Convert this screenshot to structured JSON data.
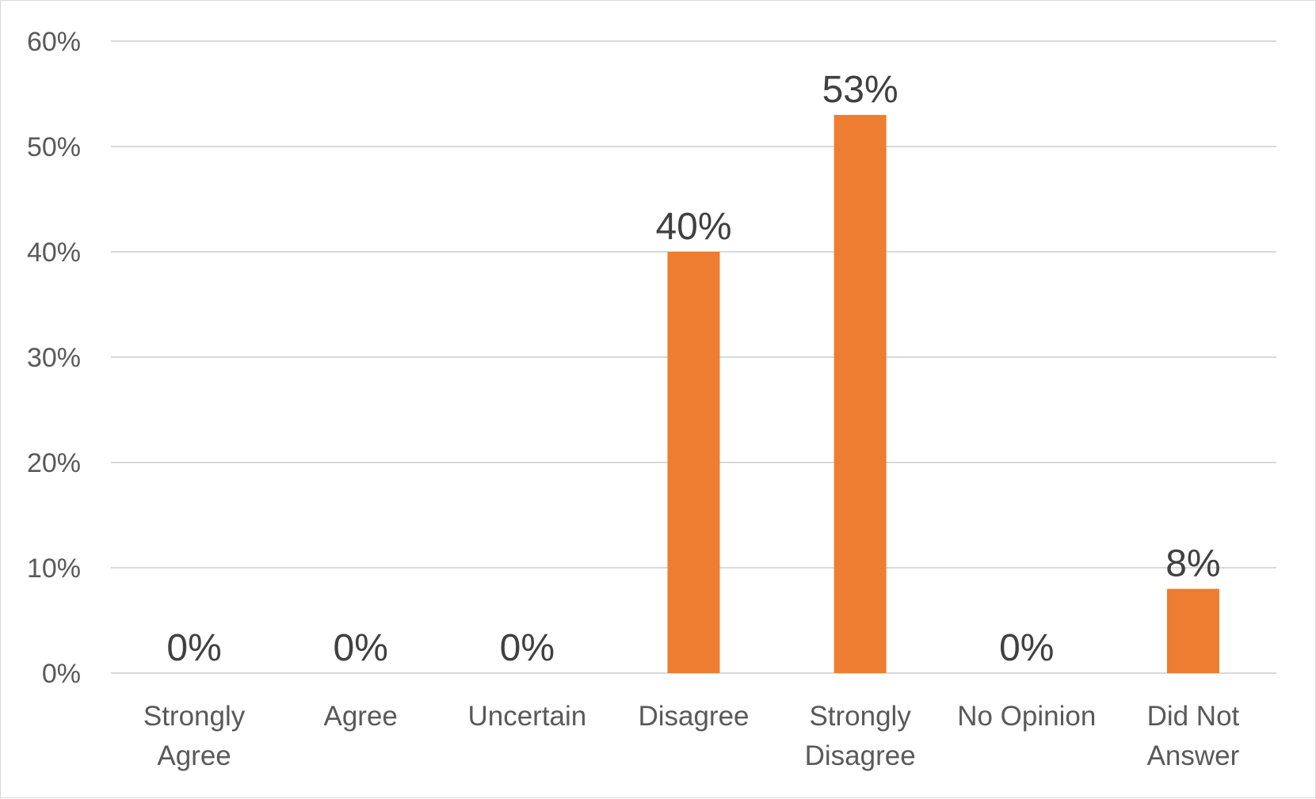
{
  "chart_data": {
    "type": "bar",
    "categories": [
      [
        "Strongly",
        "Agree"
      ],
      [
        "Agree"
      ],
      [
        "Uncertain"
      ],
      [
        "Disagree"
      ],
      [
        "Strongly",
        "Disagree"
      ],
      [
        "No Opinion"
      ],
      [
        "Did Not",
        "Answer"
      ]
    ],
    "values": [
      0,
      0,
      0,
      40,
      53,
      0,
      8
    ],
    "data_labels": [
      "0%",
      "0%",
      "0%",
      "40%",
      "53%",
      "0%",
      "8%"
    ],
    "yticks": [
      0,
      10,
      20,
      30,
      40,
      50,
      60
    ],
    "ytick_labels": [
      "0%",
      "10%",
      "20%",
      "30%",
      "40%",
      "50%",
      "60%"
    ],
    "ylim": [
      0,
      60
    ],
    "bar_color": "#ed7d31",
    "grid": true,
    "title": "",
    "xlabel": "",
    "ylabel": ""
  }
}
